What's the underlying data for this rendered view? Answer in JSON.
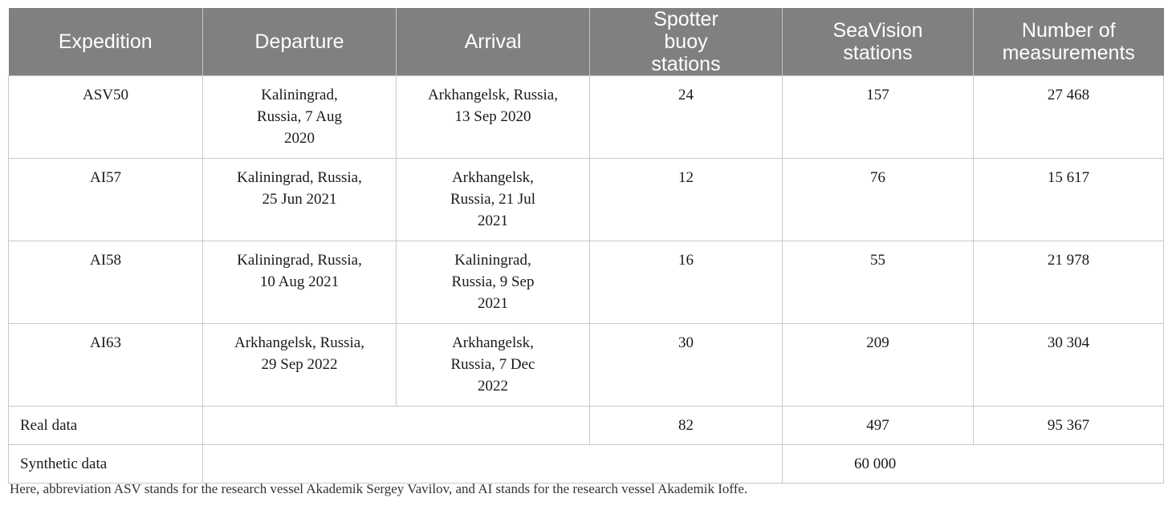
{
  "headers": [
    "Expedition",
    "Departure",
    "Arrival",
    "Spotter buoy stations",
    "SeaVision stations",
    "Number of measurements"
  ],
  "rows": [
    {
      "expedition": "ASV50",
      "departure": "Kaliningrad, Russia, 7 Aug 2020",
      "arrival": "Arkhangelsk, Russia, 13 Sep 2020",
      "spotter": "24",
      "seavision": "157",
      "measurements": "27 468"
    },
    {
      "expedition": "AI57",
      "departure": "Kaliningrad, Russia, 25 Jun 2021",
      "arrival": "Arkhangelsk, Russia, 21 Jul 2021",
      "spotter": "12",
      "seavision": "76",
      "measurements": "15 617"
    },
    {
      "expedition": "AI58",
      "departure": "Kaliningrad, Russia, 10 Aug 2021",
      "arrival": "Kaliningrad, Russia, 9 Sep 2021",
      "spotter": "16",
      "seavision": "55",
      "measurements": "21 978"
    },
    {
      "expedition": "AI63",
      "departure": "Arkhangelsk, Russia, 29 Sep 2022",
      "arrival": "Arkhangelsk, Russia, 7 Dec 2022",
      "spotter": "30",
      "seavision": "209",
      "measurements": "30 304"
    }
  ],
  "real_data": {
    "label": "Real data",
    "spotter": "82",
    "seavision": "497",
    "measurements": "95 367"
  },
  "synthetic_data": {
    "label": "Synthetic data",
    "value": "60 000"
  },
  "footnote": "Here, abbreviation ASV stands for the research vessel Akademik Sergey Vavilov, and AI stands for the research vessel Akademik Ioffe."
}
